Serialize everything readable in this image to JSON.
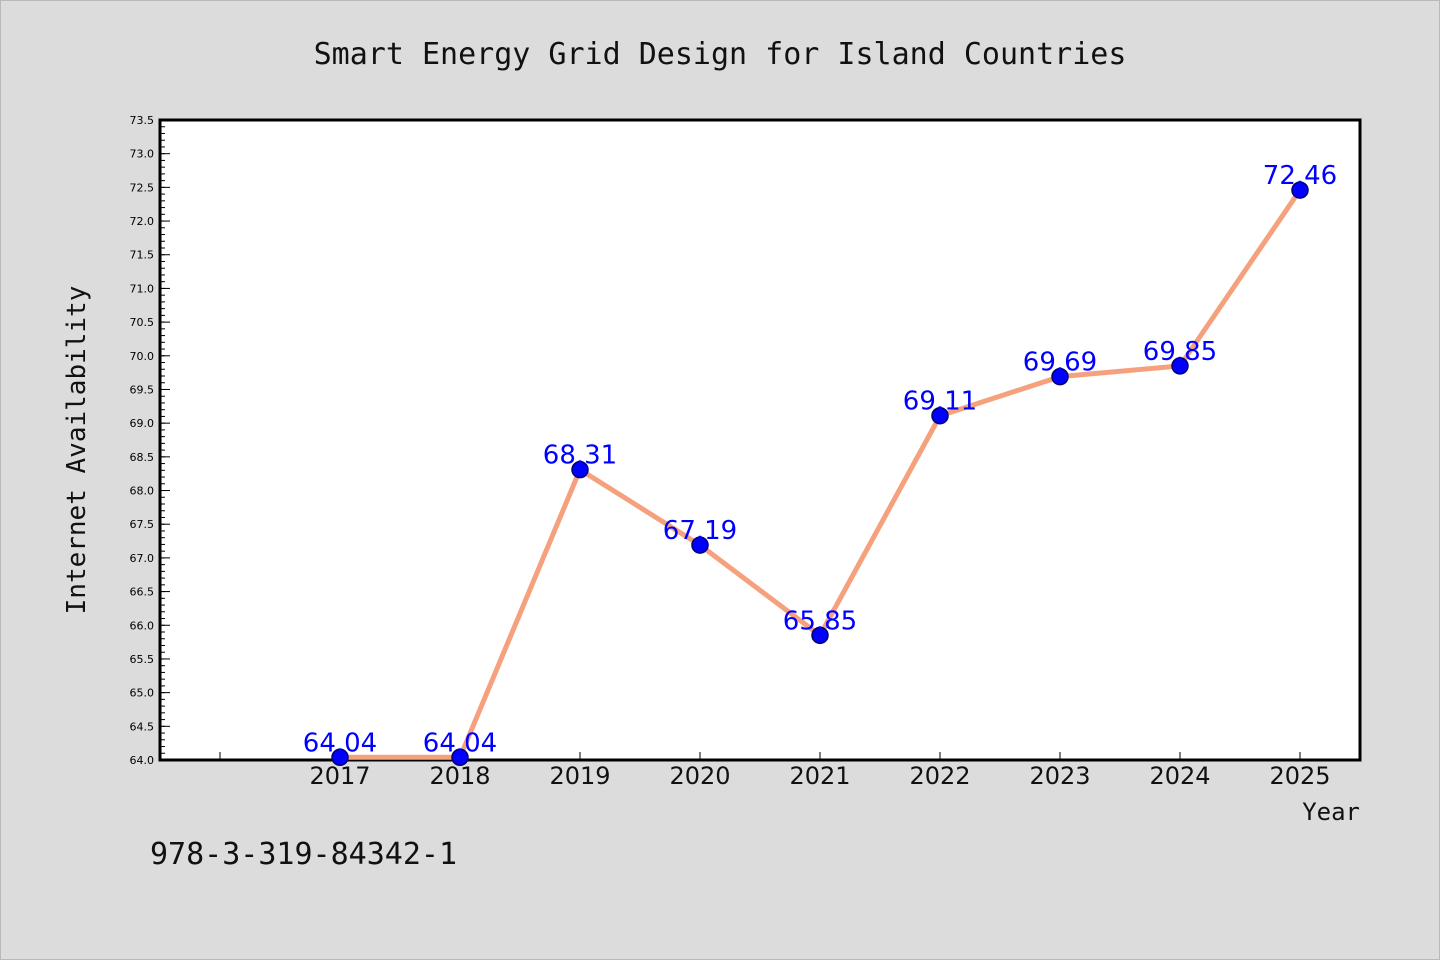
{
  "chart_data": {
    "type": "line",
    "title": "Smart Energy Grid Design for Island Countries",
    "xlabel": "Year",
    "ylabel": "Internet Availability",
    "x": [
      2017,
      2018,
      2019,
      2020,
      2021,
      2022,
      2023,
      2024,
      2025
    ],
    "xtick_labels": [
      "2017",
      "2018",
      "2019",
      "2020",
      "2021",
      "2022",
      "2023",
      "2024",
      "2025"
    ],
    "series": [
      {
        "values": [
          64.04,
          64.04,
          68.31,
          67.19,
          65.85,
          69.11,
          69.69,
          69.85,
          72.46
        ],
        "data_labels": [
          "64.04",
          "64.04",
          "68.31",
          "67.19",
          "65.85",
          "69.11",
          "69.69",
          "69.85",
          "72.46"
        ]
      }
    ],
    "ylim": [
      64.0,
      73.5
    ],
    "ytick_labels": [
      "64.0",
      "64.5",
      "65.0",
      "65.5",
      "66.0",
      "66.5",
      "67.0",
      "67.5",
      "68.0",
      "68.5",
      "69.0",
      "69.5",
      "70.0",
      "70.5",
      "71.0",
      "71.5",
      "72.0",
      "72.5",
      "73.0",
      "73.5"
    ],
    "grid": false,
    "legend": "none",
    "colors": {
      "line": "#f5a17e",
      "marker": "#0000ff",
      "data_label": "#0000ff",
      "background": "#dcdcdc",
      "plot_background": "#ffffff"
    }
  },
  "footer_text": "978-3-319-84342-1"
}
